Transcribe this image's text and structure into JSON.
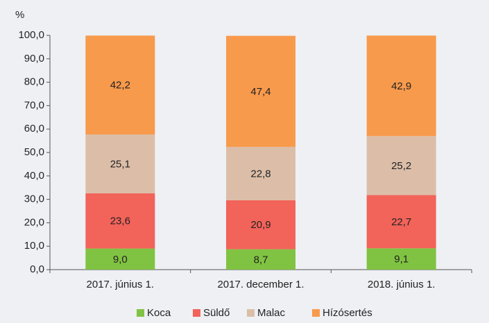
{
  "chart_data": {
    "type": "stacked_bar",
    "y_unit": "%",
    "categories": [
      "2017. június 1.",
      "2017. december 1.",
      "2018. június 1."
    ],
    "series": [
      {
        "name": "Koca",
        "color": "#80c342",
        "values": [
          9.0,
          8.7,
          9.1
        ],
        "value_labels": [
          "9,0",
          "8,7",
          "9,1"
        ]
      },
      {
        "name": "Süldő",
        "color": "#f2635a",
        "values": [
          23.6,
          20.9,
          22.7
        ],
        "value_labels": [
          "23,6",
          "20,9",
          "22,7"
        ]
      },
      {
        "name": "Malac",
        "color": "#dcbea8",
        "values": [
          25.1,
          22.8,
          25.2
        ],
        "value_labels": [
          "25,1",
          "22,8",
          "25,2"
        ]
      },
      {
        "name": "Hízósertés",
        "color": "#f89a4c",
        "values": [
          42.2,
          47.4,
          42.9
        ],
        "value_labels": [
          "42,2",
          "47,4",
          "42,9"
        ]
      }
    ],
    "ylim": [
      0,
      100
    ],
    "yticks": [
      {
        "value": 0,
        "label": "0,0"
      },
      {
        "value": 10,
        "label": "10,0"
      },
      {
        "value": 20,
        "label": "20,0"
      },
      {
        "value": 30,
        "label": "30,0"
      },
      {
        "value": 40,
        "label": "40,0"
      },
      {
        "value": 50,
        "label": "50,0"
      },
      {
        "value": 60,
        "label": "60,0"
      },
      {
        "value": 70,
        "label": "70,0"
      },
      {
        "value": 80,
        "label": "80,0"
      },
      {
        "value": 90,
        "label": "90,0"
      },
      {
        "value": 100,
        "label": "100,0"
      }
    ],
    "legend": "bottom"
  }
}
